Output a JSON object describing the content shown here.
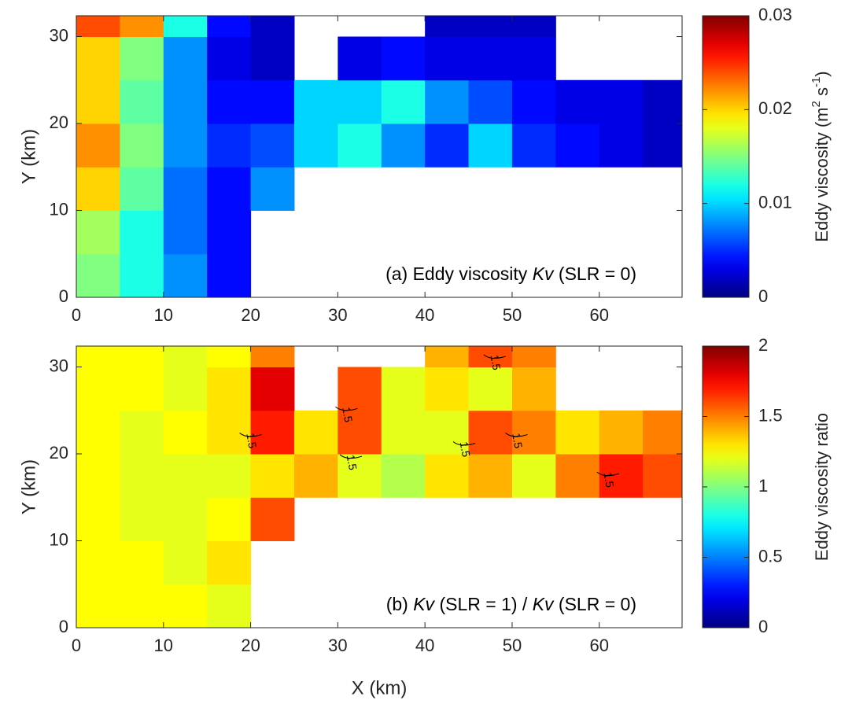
{
  "chart_data": [
    {
      "type": "heatmap",
      "annotation": [
        "(a) Eddy viscosity ",
        "Kv",
        " (SLR = 0)"
      ],
      "ylabel": "Y (km)",
      "colormap": "jet",
      "clim": [
        0,
        0.03
      ],
      "cticks": [
        0,
        0.01,
        0.02,
        0.03
      ],
      "clabel": [
        {
          "text": "Eddy viscosity (m"
        },
        {
          "text": "2",
          "sup": true
        },
        {
          "text": " s"
        },
        {
          "text": "-1",
          "sup": true
        },
        {
          "text": ")"
        }
      ],
      "xlim": [
        0,
        69.5
      ],
      "xticks": [
        0,
        10,
        20,
        30,
        40,
        50,
        60
      ],
      "ylim": [
        0,
        32.4
      ],
      "yticks": [
        0,
        10,
        20,
        30
      ],
      "x_edges": [
        0,
        5,
        10,
        15,
        20,
        25,
        30,
        35,
        40,
        45,
        50,
        55,
        60,
        65,
        69.5
      ],
      "y_edges": [
        0,
        5,
        10,
        15,
        20,
        25,
        30,
        32.4
      ],
      "z": [
        [
          0.015,
          0.012,
          0.008,
          0.004,
          null,
          null,
          null,
          null,
          null,
          null,
          null,
          null,
          null,
          null
        ],
        [
          0.016,
          0.012,
          0.007,
          0.004,
          null,
          null,
          null,
          null,
          null,
          null,
          null,
          null,
          null,
          null
        ],
        [
          0.02,
          0.014,
          0.007,
          0.004,
          0.008,
          null,
          null,
          null,
          null,
          null,
          null,
          null,
          null,
          null
        ],
        [
          0.022,
          0.015,
          0.008,
          0.005,
          0.006,
          0.01,
          0.012,
          0.008,
          0.005,
          0.01,
          0.005,
          0.004,
          0.003,
          0.002
        ],
        [
          0.02,
          0.014,
          0.008,
          0.004,
          0.004,
          0.01,
          0.01,
          0.012,
          0.008,
          0.006,
          0.004,
          0.003,
          0.003,
          0.002
        ],
        [
          0.02,
          0.015,
          0.008,
          0.003,
          0.002,
          null,
          0.003,
          0.004,
          0.003,
          0.003,
          0.003,
          null,
          null,
          null
        ],
        [
          0.024,
          0.022,
          0.012,
          0.004,
          0.002,
          null,
          null,
          null,
          0.002,
          0.002,
          0.002,
          null,
          null,
          null
        ]
      ]
    },
    {
      "type": "heatmap",
      "annotation": [
        "(b) ",
        "Kv",
        " (SLR = 1) / ",
        "Kv",
        " (SLR = 0)"
      ],
      "xlabel": "X (km)",
      "ylabel": "Y (km)",
      "colormap": "jet",
      "clim": [
        0,
        2
      ],
      "cticks": [
        0,
        0.5,
        1,
        1.5,
        2
      ],
      "clabel": [
        {
          "text": "Eddy viscosity ratio"
        }
      ],
      "contour_level": 1.5,
      "xlim": [
        0,
        69.5
      ],
      "xticks": [
        0,
        10,
        20,
        30,
        40,
        50,
        60
      ],
      "ylim": [
        0,
        32.4
      ],
      "yticks": [
        0,
        10,
        20,
        30
      ],
      "x_edges": [
        0,
        5,
        10,
        15,
        20,
        25,
        30,
        35,
        40,
        45,
        50,
        55,
        60,
        65,
        69.5
      ],
      "y_edges": [
        0,
        5,
        10,
        15,
        20,
        25,
        30,
        32.4
      ],
      "z": [
        [
          1.25,
          1.25,
          1.25,
          1.2,
          null,
          null,
          null,
          null,
          null,
          null,
          null,
          null,
          null,
          null
        ],
        [
          1.25,
          1.25,
          1.2,
          1.3,
          null,
          null,
          null,
          null,
          null,
          null,
          null,
          null,
          null,
          null
        ],
        [
          1.25,
          1.2,
          1.2,
          1.25,
          1.6,
          null,
          null,
          null,
          null,
          null,
          null,
          null,
          null,
          null
        ],
        [
          1.25,
          1.2,
          1.2,
          1.2,
          1.3,
          1.4,
          1.2,
          1.1,
          1.3,
          1.4,
          1.2,
          1.5,
          1.7,
          1.6
        ],
        [
          1.25,
          1.2,
          1.25,
          1.3,
          1.7,
          1.3,
          1.6,
          1.2,
          1.2,
          1.6,
          1.5,
          1.3,
          1.4,
          1.5
        ],
        [
          1.25,
          1.25,
          1.2,
          1.3,
          1.8,
          null,
          1.6,
          1.2,
          1.3,
          1.2,
          1.4,
          null,
          null,
          null
        ],
        [
          1.25,
          1.25,
          1.2,
          1.25,
          1.5,
          null,
          null,
          null,
          1.4,
          1.6,
          1.5,
          null,
          null,
          null
        ]
      ]
    }
  ]
}
